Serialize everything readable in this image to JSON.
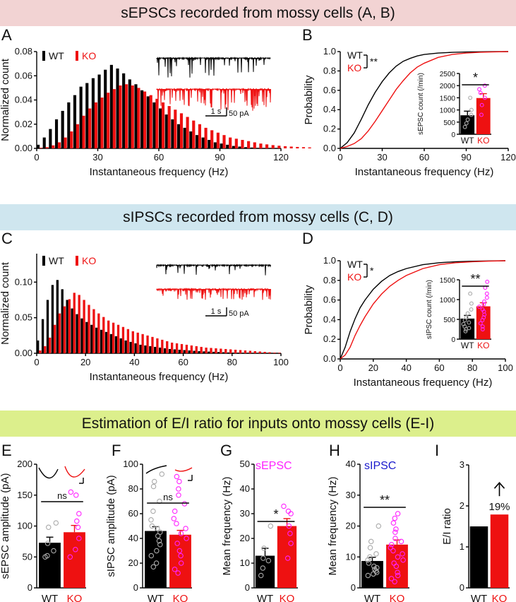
{
  "banners": {
    "top": "sEPSCs recorded from mossy cells (A, B)",
    "middle": "sIPSCs recorded from mossy cells (C, D)",
    "bottom": "Estimation of E/I ratio for inputs onto mossy cells (E-I)"
  },
  "colors": {
    "wt": "#000000",
    "ko": "#ee1111",
    "magenta": "#ff22ff",
    "blue": "#1a1acc",
    "axis": "#000000"
  },
  "trace_scale": {
    "time": "1 s",
    "amplitude": "50 pA"
  },
  "chart_data": [
    {
      "panel": "A",
      "type": "bar",
      "xlabel": "Instantaneous frequency (Hz)",
      "ylabel": "Normalized count",
      "xlim": [
        0,
        120
      ],
      "ylim": [
        0,
        0.08
      ],
      "xticks": [
        "0",
        "30",
        "60",
        "90",
        "120"
      ],
      "yticks": [
        "0.00",
        "0.02",
        "0.04",
        "0.06",
        "0.08"
      ],
      "legend": [
        "WT",
        "KO"
      ],
      "series": [
        {
          "name": "WT",
          "values": [
            0.003,
            0.009,
            0.016,
            0.024,
            0.031,
            0.038,
            0.044,
            0.051,
            0.054,
            0.058,
            0.061,
            0.065,
            0.069,
            0.066,
            0.062,
            0.057,
            0.053,
            0.048,
            0.043,
            0.038,
            0.033,
            0.028,
            0.024,
            0.02,
            0.017,
            0.014,
            0.011,
            0.009,
            0.007,
            0.005,
            0.004,
            0.003,
            0.002,
            0.0015,
            0.001,
            0.0007,
            0.0004,
            0.0002,
            0.0001,
            0.0001
          ]
        },
        {
          "name": "KO",
          "values": [
            0.0005,
            0.001,
            0.0025,
            0.005,
            0.009,
            0.014,
            0.02,
            0.027,
            0.033,
            0.038,
            0.042,
            0.046,
            0.049,
            0.052,
            0.053,
            0.052,
            0.05,
            0.047,
            0.044,
            0.041,
            0.038,
            0.035,
            0.032,
            0.029,
            0.026,
            0.023,
            0.02,
            0.017,
            0.015,
            0.013,
            0.011,
            0.009,
            0.008,
            0.007,
            0.006,
            0.005,
            0.004,
            0.0033,
            0.0027,
            0.0022,
            0.0018,
            0.0015,
            0.0012,
            0.001,
            0.0008
          ]
        }
      ],
      "bin_width": 3
    },
    {
      "panel": "B",
      "type": "line",
      "xlabel": "Instantaneous frequency (Hz)",
      "ylabel": "Probability",
      "xlim": [
        0,
        120
      ],
      "ylim": [
        0,
        1.0
      ],
      "xticks": [
        "0",
        "30",
        "60",
        "90",
        "120"
      ],
      "yticks": [
        "0.0",
        "0.2",
        "0.4",
        "0.6",
        "0.8",
        "1.0"
      ],
      "legend": [
        "WT",
        "KO"
      ],
      "significance": "**",
      "series": [
        {
          "name": "WT",
          "x": [
            0,
            5,
            10,
            15,
            20,
            25,
            30,
            35,
            40,
            45,
            50,
            55,
            60,
            70,
            80,
            90,
            100,
            110,
            120
          ],
          "y": [
            0,
            0.06,
            0.16,
            0.3,
            0.45,
            0.58,
            0.69,
            0.78,
            0.85,
            0.9,
            0.93,
            0.955,
            0.97,
            0.985,
            0.992,
            0.996,
            0.998,
            0.999,
            1.0
          ]
        },
        {
          "name": "KO",
          "x": [
            0,
            5,
            10,
            15,
            20,
            25,
            30,
            35,
            40,
            45,
            50,
            55,
            60,
            70,
            80,
            90,
            100,
            110,
            120
          ],
          "y": [
            0,
            0.02,
            0.05,
            0.1,
            0.18,
            0.28,
            0.39,
            0.5,
            0.61,
            0.7,
            0.78,
            0.84,
            0.88,
            0.94,
            0.97,
            0.985,
            0.993,
            0.997,
            1.0
          ]
        }
      ],
      "inset": {
        "type": "bar",
        "ylabel": "sEPSC count (/min)",
        "ylim": [
          0,
          2500
        ],
        "yticks": [
          "0",
          "500",
          "1000",
          "1500",
          "2000",
          "2500"
        ],
        "categories": [
          "WT",
          "KO"
        ],
        "means": [
          780,
          1490
        ],
        "errors": [
          170,
          180
        ],
        "significance": "*",
        "points": [
          [
            1500,
            1000,
            800,
            600,
            450,
            300
          ],
          [
            2000,
            1850,
            1700,
            1500,
            1200,
            800
          ]
        ]
      }
    },
    {
      "panel": "C",
      "type": "bar",
      "xlabel": "Instantaneous frequency (Hz)",
      "ylabel": "Normalized count",
      "xlim": [
        0,
        100
      ],
      "ylim": [
        0,
        0.14
      ],
      "xticks": [
        "0",
        "20",
        "40",
        "60",
        "80",
        "100"
      ],
      "yticks": [
        "0.00",
        "0.05",
        "0.10"
      ],
      "legend": [
        "WT",
        "KO"
      ],
      "series": [
        {
          "name": "WT",
          "values": [
            0.018,
            0.048,
            0.075,
            0.096,
            0.103,
            0.09,
            0.075,
            0.063,
            0.055,
            0.049,
            0.044,
            0.04,
            0.036,
            0.033,
            0.03,
            0.027,
            0.024,
            0.021,
            0.018,
            0.016,
            0.014,
            0.012,
            0.011,
            0.01,
            0.009,
            0.008,
            0.007,
            0.006,
            0.0055,
            0.005,
            0.0045,
            0.004,
            0.0035,
            0.003,
            0.0027,
            0.0024,
            0.0021,
            0.0018,
            0.0015,
            0.0012,
            0.001,
            0.0009,
            0.0008,
            0.0007,
            0.0006,
            0.0005,
            0.0004,
            0.0003,
            0.0003,
            0.0002
          ]
        },
        {
          "name": "KO",
          "values": [
            0.004,
            0.01,
            0.022,
            0.04,
            0.056,
            0.066,
            0.076,
            0.085,
            0.082,
            0.075,
            0.068,
            0.062,
            0.056,
            0.051,
            0.046,
            0.043,
            0.04,
            0.037,
            0.034,
            0.031,
            0.029,
            0.027,
            0.025,
            0.023,
            0.021,
            0.019,
            0.017,
            0.015,
            0.014,
            0.013,
            0.012,
            0.011,
            0.01,
            0.009,
            0.008,
            0.0075,
            0.007,
            0.0065,
            0.006,
            0.0055,
            0.005,
            0.0045,
            0.004,
            0.0035,
            0.003,
            0.0025,
            0.002,
            0.0015,
            0.001,
            0.0008
          ]
        }
      ],
      "bin_width": 2
    },
    {
      "panel": "D",
      "type": "line",
      "xlabel": "Instantaneous frequency (Hz)",
      "ylabel": "Probability",
      "xlim": [
        0,
        100
      ],
      "ylim": [
        0,
        1.0
      ],
      "xticks": [
        "0",
        "20",
        "40",
        "60",
        "80",
        "100"
      ],
      "yticks": [
        "0.0",
        "0.2",
        "0.4",
        "0.6",
        "0.8",
        "1.0"
      ],
      "legend": [
        "WT",
        "KO"
      ],
      "significance": "*",
      "series": [
        {
          "name": "WT",
          "x": [
            0,
            3,
            6,
            9,
            12,
            15,
            20,
            25,
            30,
            35,
            40,
            50,
            60,
            70,
            80,
            90,
            100
          ],
          "y": [
            0,
            0.12,
            0.28,
            0.41,
            0.52,
            0.6,
            0.71,
            0.79,
            0.85,
            0.89,
            0.92,
            0.96,
            0.98,
            0.99,
            0.995,
            0.998,
            1.0
          ]
        },
        {
          "name": "KO",
          "x": [
            0,
            3,
            6,
            9,
            12,
            15,
            20,
            25,
            30,
            35,
            40,
            50,
            60,
            70,
            80,
            90,
            100
          ],
          "y": [
            0,
            0.04,
            0.12,
            0.24,
            0.34,
            0.43,
            0.56,
            0.66,
            0.74,
            0.8,
            0.85,
            0.92,
            0.96,
            0.98,
            0.99,
            0.996,
            1.0
          ]
        }
      ],
      "inset": {
        "type": "bar",
        "ylabel": "sIPSC count (/min)",
        "ylim": [
          0,
          1500
        ],
        "yticks": [
          "0",
          "500",
          "1000",
          "1500"
        ],
        "categories": [
          "WT",
          "KO"
        ],
        "means": [
          520,
          830
        ],
        "errors": [
          80,
          90
        ],
        "significance": "**",
        "points": [
          [
            1150,
            900,
            750,
            650,
            550,
            480,
            420,
            380,
            320,
            280,
            250,
            200
          ],
          [
            1450,
            1300,
            1150,
            1050,
            950,
            880,
            820,
            750,
            700,
            620,
            550,
            480,
            400,
            320,
            250
          ]
        ]
      }
    },
    {
      "panel": "E",
      "type": "bar",
      "ylabel": "sEPSC amplitude (pA)",
      "ylim": [
        0,
        200
      ],
      "yticks": [
        "0",
        "50",
        "100",
        "150",
        "200"
      ],
      "categories": [
        "WT",
        "KO"
      ],
      "means": [
        73,
        90
      ],
      "errors": [
        9,
        11
      ],
      "significance": "ns",
      "points": [
        [
          105,
          98,
          72,
          60,
          52,
          50
        ],
        [
          155,
          150,
          120,
          108,
          98,
          80,
          62,
          50
        ]
      ]
    },
    {
      "panel": "F",
      "type": "bar",
      "ylabel": "sIPSC amplitude (pA)",
      "ylim": [
        0,
        100
      ],
      "yticks": [
        "0",
        "20",
        "40",
        "60",
        "80",
        "100"
      ],
      "categories": [
        "WT",
        "KO"
      ],
      "means": [
        46,
        43
      ],
      "errors": [
        3.5,
        3.5
      ],
      "significance": "ns",
      "points": [
        [
          92,
          86,
          82,
          70,
          62,
          55,
          50,
          48,
          45,
          42,
          38,
          35,
          30,
          26,
          20,
          17
        ],
        [
          90,
          86,
          80,
          75,
          68,
          62,
          56,
          52,
          48,
          44,
          40,
          36,
          30,
          26,
          20,
          15,
          12
        ]
      ]
    },
    {
      "panel": "G",
      "type": "bar",
      "series_label": "sEPSC",
      "ylabel": "Mean frequency (Hz)",
      "ylim": [
        0,
        50
      ],
      "yticks": [
        "0",
        "10",
        "20",
        "30",
        "40",
        "50"
      ],
      "categories": [
        "WT",
        "KO"
      ],
      "means": [
        13,
        25
      ],
      "errors": [
        3,
        3
      ],
      "significance": "*",
      "points": [
        [
          25,
          16,
          12,
          11,
          8,
          5
        ],
        [
          33,
          31,
          30,
          25,
          22,
          18,
          12
        ]
      ]
    },
    {
      "panel": "H",
      "type": "bar",
      "series_label": "sIPSC",
      "ylabel": "Mean frequency (Hz)",
      "ylim": [
        0,
        40
      ],
      "yticks": [
        "0",
        "10",
        "20",
        "30",
        "40"
      ],
      "categories": [
        "WT",
        "KO"
      ],
      "means": [
        8.7,
        14
      ],
      "errors": [
        1.2,
        1.5
      ],
      "significance": "**",
      "points": [
        [
          20,
          15,
          13,
          11,
          10,
          9,
          8,
          7,
          6.5,
          6,
          5.5,
          5,
          4.5,
          4
        ],
        [
          24,
          22.5,
          21,
          19,
          18,
          16,
          15,
          14,
          13,
          12,
          11,
          10,
          9,
          8,
          7,
          5,
          4,
          3,
          2
        ]
      ]
    },
    {
      "panel": "I",
      "type": "bar",
      "ylabel": "E/I ratio",
      "ylim": [
        0,
        3
      ],
      "yticks": [
        "0",
        "1",
        "2",
        "3"
      ],
      "categories": [
        "WT",
        "KO"
      ],
      "values": [
        1.5,
        1.79
      ],
      "annotation": "19%"
    }
  ]
}
